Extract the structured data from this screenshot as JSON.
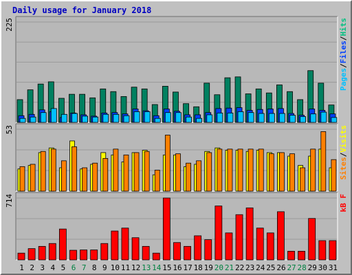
{
  "chart_data": {
    "type": "bar",
    "title": "Daily usage for January 2018",
    "days": [
      "1",
      "2",
      "3",
      "4",
      "5",
      "6",
      "7",
      "8",
      "9",
      "10",
      "11",
      "12",
      "13",
      "14",
      "15",
      "16",
      "17",
      "18",
      "19",
      "20",
      "21",
      "22",
      "23",
      "24",
      "25",
      "26",
      "27",
      "28",
      "29",
      "30",
      "31"
    ],
    "weekend_days": [
      "6",
      "7",
      "13",
      "14",
      "20",
      "21",
      "27",
      "28"
    ],
    "weekday_color": "#000000",
    "weekend_color": "#008040",
    "panels": [
      {
        "id": "hits-files-pages",
        "ymax_label": "225",
        "ymax": 225,
        "legend": [
          {
            "label": "Pages",
            "color": "#00c0ff"
          },
          {
            "label": "/",
            "color": "#000000"
          },
          {
            "label": "Files",
            "color": "#0040ff"
          },
          {
            "label": "/",
            "color": "#000000"
          },
          {
            "label": "Hits",
            "color": "#00c080"
          }
        ],
        "series": [
          {
            "name": "Hits",
            "color": "#008060",
            "values": [
              51,
              73,
              86,
              91,
              54,
              63,
              63,
              55,
              75,
              69,
              58,
              79,
              75,
              40,
              81,
              68,
              42,
              35,
              88,
              62,
              100,
              102,
              64,
              75,
              66,
              84,
              69,
              51,
              116,
              88,
              39
            ]
          },
          {
            "name": "Files",
            "color": "#0040ff",
            "values": [
              15,
              18,
              28,
              24,
              11,
              21,
              17,
              14,
              21,
              22,
              19,
              30,
              26,
              15,
              30,
              25,
              17,
              17,
              22,
              31,
              32,
              33,
              27,
              29,
              30,
              31,
              20,
              16,
              30,
              27,
              19
            ]
          },
          {
            "name": "Pages",
            "color": "#00c0ff",
            "values": [
              9,
              12,
              22,
              31,
              18,
              20,
              14,
              12,
              18,
              18,
              15,
              24,
              24,
              9,
              22,
              22,
              12,
              9,
              17,
              21,
              21,
              24,
              22,
              20,
              20,
              20,
              16,
              13,
              19,
              23,
              11
            ]
          }
        ]
      },
      {
        "id": "visits-sites",
        "ymax_label": "53",
        "ymax": 53,
        "legend": [
          {
            "label": "Sites",
            "color": "#ff8000"
          },
          {
            "label": "/",
            "color": "#000000"
          },
          {
            "label": "Visits",
            "color": "#ffff00"
          }
        ],
        "series": [
          {
            "name": "Visits",
            "color": "#ffff00",
            "values": [
              19,
              22,
              33,
              37,
              20,
              43,
              19,
              23,
              33,
              31,
              25,
              33,
              35,
              14,
              31,
              31,
              21,
              23,
              34,
              37,
              35,
              35,
              34,
              35,
              33,
              33,
              30,
              22,
              30,
              36,
              20
            ]
          },
          {
            "name": "Sites",
            "color": "#ff8000",
            "values": [
              21,
              23,
              34,
              36,
              26,
              38,
              20,
              24,
              28,
              36,
              31,
              33,
              34,
              18,
              48,
              32,
              24,
              26,
              33,
              36,
              36,
              36,
              36,
              36,
              32,
              33,
              32,
              20,
              36,
              51,
              27
            ]
          }
        ]
      },
      {
        "id": "kbytes",
        "ymax_label": "714",
        "ymax": 714,
        "legend": [
          {
            "label": "kB F",
            "color": "#ff0000"
          }
        ],
        "series": [
          {
            "name": "kB F",
            "color": "#ff0000",
            "values": [
              78,
              130,
              156,
              189,
              356,
              111,
              115,
              115,
              189,
              333,
              367,
              256,
              156,
              78,
              714,
              200,
              156,
              278,
              233,
              622,
              311,
              522,
              600,
              367,
              311,
              556,
              100,
              100,
              478,
              222,
              222
            ]
          }
        ]
      }
    ]
  }
}
